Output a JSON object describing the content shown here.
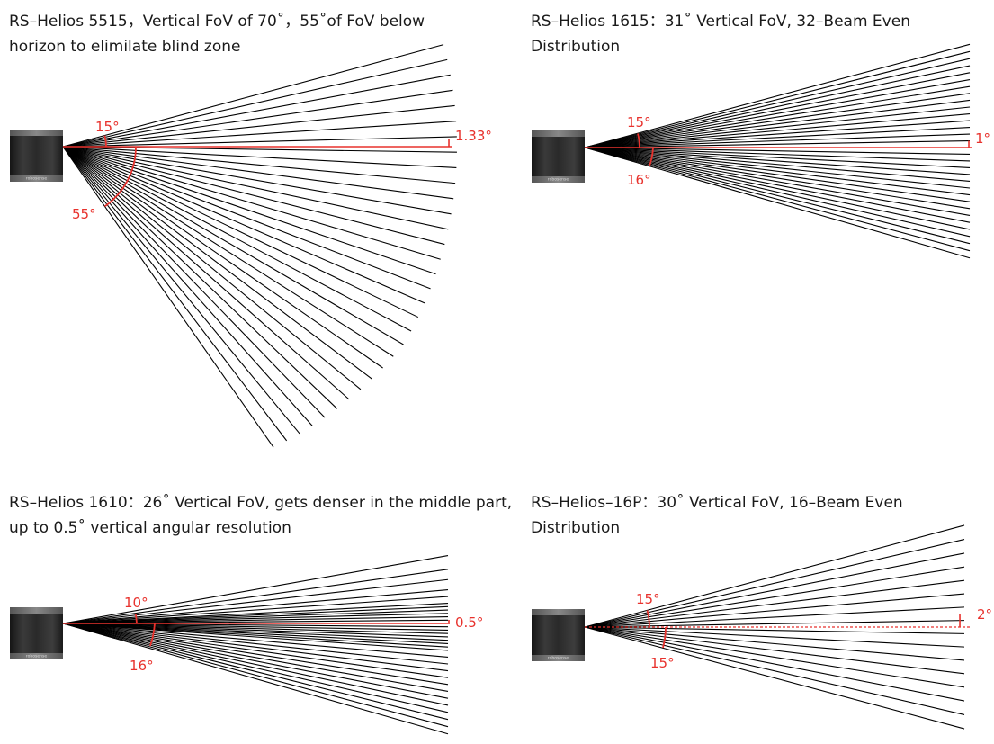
{
  "panels": [
    {
      "id": "helios-5515",
      "title": "RS–Helios 5515，Vertical FoV of 70˚，55˚of FoV below\nhorizon to elimilate blind zone",
      "up_angle_label": "15°",
      "down_angle_label": "55°",
      "resolution_label": "1.33°"
    },
    {
      "id": "helios-1615",
      "title": "RS–Helios 1615：31˚ Vertical FoV, 32–Beam Even\nDistribution",
      "up_angle_label": "15°",
      "down_angle_label": "16°",
      "resolution_label": "1°"
    },
    {
      "id": "helios-1610",
      "title": "RS–Helios 1610：26˚ Vertical FoV, gets denser in the middle part,\nup to 0.5˚ vertical angular resolution",
      "up_angle_label": "10°",
      "down_angle_label": "16°",
      "resolution_label": "0.5°"
    },
    {
      "id": "helios-16p",
      "title": "RS–Helios–16P：30˚ Vertical FoV, 16–Beam Even\nDistribution",
      "up_angle_label": "15°",
      "down_angle_label": "15°",
      "resolution_label": "2°"
    }
  ],
  "sensor_brand": "robosense",
  "colors": {
    "beam": "#000000",
    "horizon": "#e8322d",
    "annotation": "#e8322d",
    "sensor_body": "#2a2a2a"
  }
}
